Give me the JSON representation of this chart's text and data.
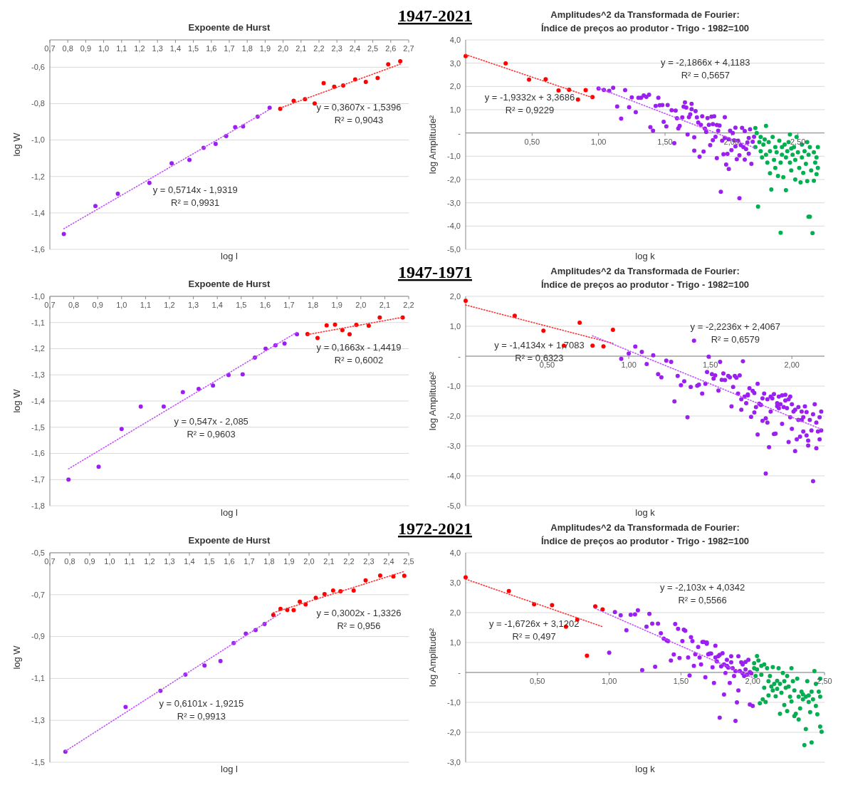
{
  "chart_data": [
    {
      "type": "scatter",
      "title": "Expoente de Hurst",
      "xlabel": "log l",
      "ylabel": "log W",
      "marker": "circle",
      "grid": "y",
      "xlim": [
        0.7,
        2.7
      ],
      "ylim": [
        -1.6,
        -0.45
      ],
      "xticks": [
        {
          "value": 0.7,
          "label": "0,7"
        },
        {
          "value": 0.8,
          "label": "0,8"
        },
        {
          "value": 0.9,
          "label": "0,9"
        },
        {
          "value": 1.0,
          "label": "1,0"
        },
        {
          "value": 1.1,
          "label": "1,1"
        },
        {
          "value": 1.2,
          "label": "1,2"
        },
        {
          "value": 1.3,
          "label": "1,3"
        },
        {
          "value": 1.4,
          "label": "1,4"
        },
        {
          "value": 1.5,
          "label": "1,5"
        },
        {
          "value": 1.6,
          "label": "1,6"
        },
        {
          "value": 1.7,
          "label": "1,7"
        },
        {
          "value": 1.8,
          "label": "1,8"
        },
        {
          "value": 1.9,
          "label": "1,9"
        },
        {
          "value": 2.0,
          "label": "2,0"
        },
        {
          "value": 2.1,
          "label": "2,1"
        },
        {
          "value": 2.2,
          "label": "2,2"
        },
        {
          "value": 2.3,
          "label": "2,3"
        },
        {
          "value": 2.4,
          "label": "2,4"
        },
        {
          "value": 2.5,
          "label": "2,5"
        },
        {
          "value": 2.6,
          "label": "2,6"
        },
        {
          "value": 2.7,
          "label": "2,7"
        }
      ],
      "yticks": [
        {
          "value": -1.6,
          "label": "-1,6"
        },
        {
          "value": -1.4,
          "label": "-1,4"
        },
        {
          "value": -1.2,
          "label": "-1,2"
        },
        {
          "value": -1.0,
          "label": "-1,0"
        },
        {
          "value": -0.8,
          "label": "-0,8"
        },
        {
          "value": -0.6,
          "label": "-0,6"
        }
      ],
      "series": [
        {
          "color": "#9b1ff0",
          "x": [
            0.778,
            0.954,
            1.079,
            1.255,
            1.379,
            1.478,
            1.557,
            1.624,
            1.683,
            1.733,
            1.777,
            1.858,
            1.925
          ],
          "values": [
            -1.516,
            -1.362,
            -1.295,
            -1.235,
            -1.128,
            -1.109,
            -1.043,
            -1.021,
            -0.978,
            -0.929,
            -0.925,
            -0.871,
            -0.823
          ]
        },
        {
          "color": "#ff0000",
          "x": [
            1.984,
            2.059,
            2.122,
            2.176,
            2.226,
            2.285,
            2.335,
            2.402,
            2.461,
            2.527,
            2.586,
            2.653
          ],
          "values": [
            -0.828,
            -0.784,
            -0.776,
            -0.799,
            -0.688,
            -0.707,
            -0.7,
            -0.667,
            -0.681,
            -0.659,
            -0.584,
            -0.567
          ]
        },
        {
          "type": "line",
          "marker": "none",
          "line_style": "dotted",
          "color": "#c050ff",
          "x": [
            0.778,
            1.925
          ],
          "values": [
            -1.487,
            -0.832
          ]
        },
        {
          "type": "line",
          "marker": "none",
          "line_style": "dotted",
          "color": "#ff3030",
          "x": [
            1.984,
            2.653
          ],
          "values": [
            -0.824,
            -0.583
          ]
        }
      ],
      "annotations": [
        "1947-2021",
        "y = 0,5714x - 1,9319",
        "R² = 0,9931",
        "y = 0,3607x - 1,5396",
        "R² = 0,9043"
      ]
    },
    {
      "type": "scatter",
      "title": "Amplitudes^2 da Transformada de Fourier:",
      "subtitle": "Índice de preços ao produtor - Trigo - 1982=100",
      "xlabel": "log k",
      "ylabel": "log Amplitude²",
      "marker": "circle",
      "grid": "y",
      "xlim": [
        0,
        2.7
      ],
      "ylim": [
        -5,
        4
      ],
      "xticks": [
        {
          "value": 0.5,
          "label": "0,50"
        },
        {
          "value": 1.0,
          "label": "1,00"
        },
        {
          "value": 1.5,
          "label": "1,50"
        },
        {
          "value": 2.0,
          "label": "2,00"
        },
        {
          "value": 2.5,
          "label": "2,50"
        }
      ],
      "yticks": [
        {
          "value": -5,
          "label": "-5,0"
        },
        {
          "value": -4,
          "label": "-4,0"
        },
        {
          "value": -3,
          "label": "-3,0"
        },
        {
          "value": -2,
          "label": "-2,0"
        },
        {
          "value": -1,
          "label": "-1,0"
        },
        {
          "value": 0,
          "label": "-"
        },
        {
          "value": 1,
          "label": "1,0"
        },
        {
          "value": 2,
          "label": "2,0"
        },
        {
          "value": 3,
          "label": "3,0"
        },
        {
          "value": 4,
          "label": "4,0"
        }
      ],
      "series": [
        {
          "color": "#ff0000",
          "x": [
            0,
            0.301,
            0.477,
            0.602,
            0.699,
            0.778,
            0.845,
            0.903,
            0.954
          ],
          "values": [
            3.3,
            2.99,
            2.29,
            2.31,
            1.83,
            1.86,
            1.44,
            1.84,
            1.54
          ]
        },
        {
          "color": "#9b1ff0",
          "x": [
            1.0,
            1.04,
            1.08,
            1.11,
            1.14,
            1.17,
            1.2,
            1.23,
            1.25,
            1.28,
            1.3,
            1.32,
            1.34,
            1.36,
            1.38,
            1.39,
            1.41,
            1.43,
            1.45,
            1.46,
            1.48,
            1.49,
            1.51,
            1.52,
            1.55,
            1.57,
            1.58,
            1.59,
            1.6,
            1.61,
            1.63,
            1.64,
            1.65,
            1.66,
            1.67,
            1.68,
            1.69,
            1.7,
            1.7,
            1.72,
            1.72,
            1.73,
            1.74,
            1.75,
            1.76,
            1.77,
            1.78,
            1.79,
            1.8,
            1.81,
            1.82,
            1.83,
            1.84,
            1.85,
            1.86,
            1.86,
            1.87,
            1.88,
            1.89,
            1.89,
            1.9,
            1.91,
            1.92,
            1.93,
            1.94,
            1.95,
            1.95,
            1.96,
            1.97,
            1.98,
            1.98,
            1.99,
            2.0,
            2.01,
            2.02,
            2.03,
            2.03,
            2.04,
            2.05,
            2.06,
            2.06,
            2.07,
            2.08,
            2.09,
            2.1,
            2.1,
            2.11,
            2.12,
            2.13,
            2.13,
            2.14,
            2.15,
            2.16,
            2.17
          ],
          "values": [
            1.91,
            1.85,
            1.81,
            1.94,
            1.14,
            0.62,
            1.84,
            1.11,
            1.53,
            0.89,
            1.51,
            1.51,
            1.61,
            1.55,
            1.64,
            0.25,
            0.1,
            1.16,
            1.51,
            1.19,
            1.2,
            0.48,
            0.28,
            1.2,
            0.98,
            -0.44,
            0.96,
            0.63,
            0.2,
            0.3,
            0.67,
            1.13,
            1.31,
            1.09,
            -0.06,
            0.68,
            0.8,
            1.25,
            1.02,
            -0.19,
            -0.76,
            0.94,
            0.67,
            0.45,
            -1.02,
            0.35,
            0.72,
            -0.8,
            0.19,
            0.04,
            0.64,
            0.35,
            -0.52,
            0.7,
            0.38,
            -0.31,
            0.72,
            -0.16,
            0.34,
            -1.08,
            0.1,
            0.32,
            -2.53,
            -0.33,
            -0.91,
            0.68,
            -0.21,
            -1.36,
            -0.9,
            -1.55,
            -0.27,
            0.1,
            -0.74,
            0,
            -0.32,
            -0.58,
            0.23,
            -1.13,
            -0.33,
            -0.96,
            -2.8,
            -0.52,
            0.22,
            -0.61,
            -1.14,
            0.08,
            -0.69,
            -0.41,
            -0.89,
            -0.22,
            0.16,
            -1.33,
            -0.38,
            -0.16
          ]
        },
        {
          "color": "#00b050",
          "x": [
            2.18,
            2.18,
            2.19,
            2.2,
            2.21,
            2.22,
            2.22,
            2.23,
            2.24,
            2.25,
            2.26,
            2.26,
            2.27,
            2.28,
            2.29,
            2.29,
            2.3,
            2.31,
            2.32,
            2.33,
            2.33,
            2.34,
            2.35,
            2.36,
            2.37,
            2.37,
            2.38,
            2.38,
            2.39,
            2.4,
            2.41,
            2.41,
            2.42,
            2.43,
            2.44,
            2.44,
            2.45,
            2.45,
            2.46,
            2.47,
            2.48,
            2.48,
            2.49,
            2.5,
            2.51,
            2.52,
            2.53,
            2.53,
            2.54,
            2.55,
            2.56,
            2.57,
            2.57,
            2.58,
            2.58,
            2.59,
            2.59,
            2.6,
            2.61,
            2.62,
            2.62,
            2.63,
            2.64,
            2.64,
            2.65,
            2.65
          ],
          "values": [
            0.21,
            -0.61,
            0,
            -3.16,
            -0.39,
            -0.78,
            -0.17,
            -1.05,
            -0.5,
            -0.28,
            -0.94,
            0.3,
            -1.27,
            -0.39,
            -1.73,
            -0.78,
            -2.43,
            -0.17,
            -1.16,
            -0.61,
            -1.5,
            -0.83,
            -1.85,
            -0.33,
            -1.27,
            -4.29,
            -0.61,
            -0.94,
            -1.9,
            -0.5,
            -1.05,
            -2.46,
            -0.78,
            -0.39,
            -1.27,
            -0.06,
            -0.67,
            -1.61,
            -0.94,
            -0.61,
            -2.0,
            -1.16,
            -0.17,
            -0.83,
            -1.5,
            -2.12,
            -0.5,
            -1.05,
            -1.72,
            -0.78,
            -1.33,
            -2.07,
            -0.39,
            -3.6,
            -0.94,
            -0.61,
            -3.6,
            -1.61,
            -4.3,
            -2.05,
            -0.83,
            -1.27,
            -1.77,
            -1.05,
            -1.5,
            -0.61
          ]
        },
        {
          "type": "line",
          "marker": "none",
          "line_style": "dotted",
          "color": "#ff3030",
          "x": [
            0,
            0.955
          ],
          "values": [
            3.37,
            1.52
          ]
        },
        {
          "type": "line",
          "marker": "none",
          "line_style": "dotted",
          "color": "#c050ff",
          "x": [
            1.0,
            2.18
          ],
          "values": [
            1.93,
            -0.65
          ]
        }
      ],
      "annotations": [
        "y = -1,9332x + 3,3686",
        "R² = 0,9229",
        "y = -2,1866x + 4,1183",
        "R² = 0,5657"
      ]
    },
    {
      "type": "scatter",
      "title": "Expoente de Hurst",
      "xlabel": "log l",
      "ylabel": "log W",
      "marker": "circle",
      "grid": "y",
      "xlim": [
        0.7,
        2.2
      ],
      "ylim": [
        -1.8,
        -1.0
      ],
      "xticks": [
        {
          "value": 0.7,
          "label": "0,7"
        },
        {
          "value": 0.8,
          "label": "0,8"
        },
        {
          "value": 0.9,
          "label": "0,9"
        },
        {
          "value": 1.0,
          "label": "1,0"
        },
        {
          "value": 1.1,
          "label": "1,1"
        },
        {
          "value": 1.2,
          "label": "1,2"
        },
        {
          "value": 1.3,
          "label": "1,3"
        },
        {
          "value": 1.4,
          "label": "1,4"
        },
        {
          "value": 1.5,
          "label": "1,5"
        },
        {
          "value": 1.6,
          "label": "1,6"
        },
        {
          "value": 1.7,
          "label": "1,7"
        },
        {
          "value": 1.8,
          "label": "1,8"
        },
        {
          "value": 1.9,
          "label": "1,9"
        },
        {
          "value": 2.0,
          "label": "2,0"
        },
        {
          "value": 2.1,
          "label": "2,1"
        },
        {
          "value": 2.2,
          "label": "2,2"
        }
      ],
      "yticks": [
        {
          "value": -1.8,
          "label": "-1,8"
        },
        {
          "value": -1.7,
          "label": "-1,7"
        },
        {
          "value": -1.6,
          "label": "-1,6"
        },
        {
          "value": -1.5,
          "label": "-1,5"
        },
        {
          "value": -1.4,
          "label": "-1,4"
        },
        {
          "value": -1.3,
          "label": "-1,3"
        },
        {
          "value": -1.2,
          "label": "-1,2"
        },
        {
          "value": -1.1,
          "label": "-1,1"
        },
        {
          "value": -1.0,
          "label": "-1,0"
        }
      ],
      "series": [
        {
          "color": "#9b1ff0",
          "x": [
            0.778,
            0.904,
            1.0,
            1.08,
            1.176,
            1.256,
            1.322,
            1.382,
            1.447,
            1.506,
            1.557,
            1.602,
            1.643,
            1.681,
            1.733
          ],
          "values": [
            -1.7,
            -1.651,
            -1.507,
            -1.421,
            -1.421,
            -1.366,
            -1.354,
            -1.341,
            -1.301,
            -1.298,
            -1.234,
            -1.2,
            -1.187,
            -1.18,
            -1.145
          ]
        },
        {
          "color": "#ff0000",
          "x": [
            1.777,
            1.819,
            1.857,
            1.892,
            1.923,
            1.953,
            1.981,
            2.033,
            2.079,
            2.175
          ],
          "values": [
            -1.144,
            -1.159,
            -1.111,
            -1.108,
            -1.129,
            -1.145,
            -1.109,
            -1.112,
            -1.081,
            -1.081
          ]
        },
        {
          "type": "line",
          "marker": "none",
          "line_style": "dotted",
          "color": "#c050ff",
          "x": [
            0.778,
            1.733
          ],
          "values": [
            -1.659,
            -1.137
          ]
        },
        {
          "type": "line",
          "marker": "none",
          "line_style": "dotted",
          "color": "#ff3030",
          "x": [
            1.777,
            2.175
          ],
          "values": [
            -1.146,
            -1.08
          ]
        }
      ],
      "annotations": [
        "1947-1971",
        "y = 0,547x - 2,085",
        "R² = 0,9603",
        "y = 0,1663x - 1,4419",
        "R² = 0,6002"
      ]
    },
    {
      "type": "scatter",
      "title": "Amplitudes^2 da Transformada de Fourier:",
      "subtitle": "Índice de preços ao produtor - Trigo - 1982=100",
      "xlabel": "log k",
      "ylabel": "log Amplitude²",
      "marker": "circle",
      "grid": "y",
      "xlim": [
        0,
        2.2
      ],
      "ylim": [
        -5,
        2
      ],
      "xticks": [
        {
          "value": 0.5,
          "label": "0,50"
        },
        {
          "value": 1.0,
          "label": "1,00"
        },
        {
          "value": 1.5,
          "label": "1,50"
        },
        {
          "value": 2.0,
          "label": "2,00"
        }
      ],
      "yticks": [
        {
          "value": -5,
          "label": "-5,0"
        },
        {
          "value": -4,
          "label": "-4,0"
        },
        {
          "value": -3,
          "label": "-3,0"
        },
        {
          "value": -2,
          "label": "-2,0"
        },
        {
          "value": -1,
          "label": "-1,0"
        },
        {
          "value": 0,
          "label": "-"
        },
        {
          "value": 1,
          "label": "1,0"
        },
        {
          "value": 2,
          "label": "2,0"
        }
      ],
      "series": [
        {
          "color": "#ff0000",
          "x": [
            0,
            0.301,
            0.477,
            0.602,
            0.699,
            0.778,
            0.845,
            0.903
          ],
          "values": [
            1.85,
            1.35,
            0.85,
            0.35,
            1.12,
            0.35,
            0.33,
            0.88
          ]
        },
        {
          "color": "#9b1ff0",
          "x": [
            0.954,
            1.0,
            1.04,
            1.08,
            1.11,
            1.15,
            1.18,
            1.2,
            1.23,
            1.26,
            1.28,
            1.3,
            1.32,
            1.34,
            1.36,
            1.38,
            1.4,
            1.42,
            1.43,
            1.45,
            1.47,
            1.48,
            1.49,
            1.51,
            1.52,
            1.53,
            1.55,
            1.56,
            1.57,
            1.58,
            1.59,
            1.61,
            1.62,
            1.63,
            1.64,
            1.65,
            1.66,
            1.67,
            1.68,
            1.69,
            1.69,
            1.7,
            1.71,
            1.72,
            1.73,
            1.73,
            1.74,
            1.75,
            1.76,
            1.77,
            1.77,
            1.78,
            1.79,
            1.79,
            1.8,
            1.81,
            1.82,
            1.82,
            1.83,
            1.84,
            1.84,
            1.85,
            1.85,
            1.86,
            1.87,
            1.87,
            1.88,
            1.89,
            1.89,
            1.9,
            1.91,
            1.91,
            1.92,
            1.92,
            1.93,
            1.94,
            1.94,
            1.95,
            1.96,
            1.96,
            1.97,
            1.98,
            1.98,
            1.99,
            1.99,
            2.0,
            2.0,
            2.01,
            2.02,
            2.02,
            2.03,
            2.04,
            2.04,
            2.05,
            2.06,
            2.06,
            2.07,
            2.07,
            2.08,
            2.09,
            2.09,
            2.1,
            2.1,
            2.11,
            2.12,
            2.13,
            2.13,
            2.14,
            2.15,
            2.15,
            2.16,
            2.17,
            2.17,
            2.18,
            2.18
          ],
          "values": [
            -0.09,
            0.09,
            0.32,
            0.14,
            -0.26,
            0.03,
            -0.6,
            -0.71,
            -0.15,
            -0.19,
            -1.51,
            -0.66,
            -0.97,
            -0.84,
            -2.04,
            -1.03,
            0.52,
            -0.99,
            -0.95,
            -1.25,
            -0.92,
            -0.53,
            -0.02,
            -0.6,
            -0.75,
            -0.64,
            -1.15,
            -0.19,
            -0.79,
            -0.58,
            -0.8,
            -0.66,
            -0.71,
            -1.68,
            -1.03,
            -0.66,
            -0.72,
            -1.25,
            -0.64,
            -1.44,
            -1.79,
            -0.17,
            -1.35,
            -1.57,
            -1.31,
            -1.28,
            -1.07,
            -2.03,
            -1.16,
            -1.23,
            -1.88,
            -1.7,
            -0.92,
            -2.62,
            -1.59,
            -1.63,
            -2.16,
            -1.41,
            -1.25,
            -2.08,
            -3.92,
            -1.44,
            -2.22,
            -3.04,
            -1.35,
            -1.85,
            -1.41,
            -2.6,
            -1.27,
            -2.59,
            -1.57,
            -1.67,
            -1.35,
            -1.74,
            -1.61,
            -1.31,
            -2.26,
            -1.7,
            -1.29,
            -1.48,
            -1.74,
            -2.87,
            -1.44,
            -1.35,
            -2.04,
            -1.61,
            -2.43,
            -1.85,
            -3.17,
            -1.79,
            -2.78,
            -2.13,
            -1.7,
            -2.69,
            -2.13,
            -1.85,
            -2.04,
            -2.52,
            -1.68,
            -2.65,
            -1.87,
            -2.99,
            -2.82,
            -2.13,
            -2.48,
            -1.94,
            -4.18,
            -1.61,
            -3.08,
            -2.22,
            -2.52,
            -2.04,
            -2.78,
            -1.85,
            -2.48
          ]
        },
        {
          "type": "line",
          "marker": "none",
          "line_style": "dotted",
          "color": "#ff3030",
          "x": [
            0,
            0.903
          ],
          "values": [
            1.71,
            0.43
          ]
        },
        {
          "type": "line",
          "marker": "none",
          "line_style": "dotted",
          "color": "#c050ff",
          "x": [
            0.778,
            2.18
          ],
          "values": [
            0.68,
            -2.44
          ]
        }
      ],
      "annotations": [
        "y = -1,4134x + 1,7083",
        "R² = 0,6323",
        "y = -2,2236x + 2,4067",
        "R² = 0,6579"
      ]
    },
    {
      "type": "scatter",
      "title": "Expoente de Hurst",
      "xlabel": "log l",
      "ylabel": "log W",
      "marker": "circle",
      "grid": "y",
      "xlim": [
        0.7,
        2.5
      ],
      "ylim": [
        -1.5,
        -0.5
      ],
      "xticks": [
        {
          "value": 0.7,
          "label": "0,7"
        },
        {
          "value": 0.8,
          "label": "0,8"
        },
        {
          "value": 0.9,
          "label": "0,9"
        },
        {
          "value": 1.0,
          "label": "1,0"
        },
        {
          "value": 1.1,
          "label": "1,1"
        },
        {
          "value": 1.2,
          "label": "1,2"
        },
        {
          "value": 1.3,
          "label": "1,3"
        },
        {
          "value": 1.4,
          "label": "1,4"
        },
        {
          "value": 1.5,
          "label": "1,5"
        },
        {
          "value": 1.6,
          "label": "1,6"
        },
        {
          "value": 1.7,
          "label": "1,7"
        },
        {
          "value": 1.8,
          "label": "1,8"
        },
        {
          "value": 1.9,
          "label": "1,9"
        },
        {
          "value": 2.0,
          "label": "2,0"
        },
        {
          "value": 2.1,
          "label": "2,1"
        },
        {
          "value": 2.2,
          "label": "2,2"
        },
        {
          "value": 2.3,
          "label": "2,3"
        },
        {
          "value": 2.4,
          "label": "2,4"
        },
        {
          "value": 2.5,
          "label": "2,5"
        }
      ],
      "yticks": [
        {
          "value": -1.5,
          "label": "-1,5"
        },
        {
          "value": -1.3,
          "label": "-1,3"
        },
        {
          "value": -1.1,
          "label": "-1,1"
        },
        {
          "value": -0.9,
          "label": "-0,9"
        },
        {
          "value": -0.7,
          "label": "-0,7"
        },
        {
          "value": -0.5,
          "label": "-0,5"
        }
      ],
      "series": [
        {
          "color": "#9b1ff0",
          "x": [
            0.778,
            1.08,
            1.255,
            1.38,
            1.476,
            1.556,
            1.622,
            1.683,
            1.732,
            1.777
          ],
          "values": [
            -1.45,
            -1.236,
            -1.159,
            -1.082,
            -1.038,
            -1.017,
            -0.931,
            -0.886,
            -0.869,
            -0.84
          ]
        },
        {
          "color": "#ff0000",
          "x": [
            1.821,
            1.857,
            1.891,
            1.923,
            1.954,
            1.983,
            2.034,
            2.078,
            2.121,
            2.158,
            2.224,
            2.284,
            2.357,
            2.423,
            2.478
          ],
          "values": [
            -0.797,
            -0.768,
            -0.773,
            -0.774,
            -0.734,
            -0.747,
            -0.715,
            -0.697,
            -0.68,
            -0.684,
            -0.68,
            -0.632,
            -0.609,
            -0.613,
            -0.61
          ]
        },
        {
          "type": "line",
          "marker": "none",
          "line_style": "dotted",
          "color": "#c050ff",
          "x": [
            0.778,
            1.857
          ],
          "values": [
            -1.447,
            -0.789
          ]
        },
        {
          "type": "line",
          "marker": "none",
          "line_style": "dotted",
          "color": "#ff3030",
          "x": [
            1.821,
            2.478
          ],
          "values": [
            -0.786,
            -0.589
          ]
        }
      ],
      "annotations": [
        "1972-2021",
        "y = 0,6101x - 1,9215",
        "R² = 0,9913",
        "y = 0,3002x - 1,3326",
        "R² = 0,956"
      ]
    },
    {
      "type": "scatter",
      "title": "Amplitudes^2 da Transformada de Fourier:",
      "subtitle": "Índice de preços ao produtor - Trigo - 1982=100",
      "xlabel": "log k",
      "ylabel": "log Amplitude²",
      "marker": "circle",
      "grid": "y",
      "xlim": [
        0,
        2.5
      ],
      "ylim": [
        -3,
        4
      ],
      "xticks": [
        {
          "value": 0.5,
          "label": "0,50"
        },
        {
          "value": 1.0,
          "label": "1,00"
        },
        {
          "value": 1.5,
          "label": "1,50"
        },
        {
          "value": 2.0,
          "label": "2,00"
        },
        {
          "value": 2.5,
          "label": "2,50"
        }
      ],
      "yticks": [
        {
          "value": -3,
          "label": "-3,0"
        },
        {
          "value": -2,
          "label": "-2,0"
        },
        {
          "value": -1,
          "label": "-1,0"
        },
        {
          "value": 0,
          "label": "-"
        },
        {
          "value": 1,
          "label": "1,0"
        },
        {
          "value": 2,
          "label": "2,0"
        },
        {
          "value": 3,
          "label": "3,0"
        },
        {
          "value": 4,
          "label": "4,0"
        }
      ],
      "series": [
        {
          "color": "#ff0000",
          "x": [
            0,
            0.301,
            0.477,
            0.602,
            0.699,
            0.778,
            0.845,
            0.903,
            0.954
          ],
          "values": [
            3.18,
            2.72,
            2.28,
            2.25,
            1.53,
            1.77,
            0.56,
            2.21,
            2.11
          ]
        },
        {
          "color": "#9b1ff0",
          "x": [
            1.0,
            1.04,
            1.08,
            1.12,
            1.15,
            1.18,
            1.2,
            1.23,
            1.26,
            1.28,
            1.3,
            1.32,
            1.34,
            1.36,
            1.38,
            1.4,
            1.41,
            1.43,
            1.45,
            1.46,
            1.48,
            1.49,
            1.51,
            1.52,
            1.53,
            1.55,
            1.56,
            1.57,
            1.58,
            1.59,
            1.6,
            1.62,
            1.63,
            1.64,
            1.65,
            1.66,
            1.67,
            1.68,
            1.68,
            1.69,
            1.7,
            1.71,
            1.72,
            1.73,
            1.74,
            1.74,
            1.75,
            1.76,
            1.77,
            1.77,
            1.78,
            1.79,
            1.8,
            1.8,
            1.81,
            1.82,
            1.82,
            1.83,
            1.84,
            1.85,
            1.85,
            1.86,
            1.87,
            1.88,
            1.88,
            1.89,
            1.9,
            1.9,
            1.91,
            1.92,
            1.93,
            1.93,
            1.94,
            1.95,
            1.95,
            1.96,
            1.97,
            1.98,
            1.98,
            1.99,
            2.0
          ],
          "values": [
            0.66,
            2.02,
            1.91,
            1.41,
            1.93,
            1.94,
            2.08,
            0.08,
            1.53,
            1.96,
            1.63,
            0.19,
            1.63,
            1.31,
            1.13,
            1.07,
            1.05,
            0.4,
            0.6,
            1.62,
            1.46,
            0.48,
            1.05,
            1.43,
            1.39,
            0.5,
            -0.1,
            1.18,
            1.05,
            0.22,
            0.61,
            0.85,
            0.5,
            0.27,
            1.02,
            1.02,
            -0.16,
            0.96,
            1.0,
            0.61,
            0.63,
            0.63,
            0.17,
            -0.35,
            0.89,
            0.5,
            0.37,
            0.54,
            -1.51,
            0.59,
            0.2,
            0.64,
            0.27,
            -0.74,
            -0.02,
            0.42,
            0.22,
            0.16,
            -0.35,
            0.54,
            0.34,
            0.14,
            -0.12,
            -1.62,
            0.05,
            -1.0,
            -0.6,
            0.54,
            0.05,
            0.34,
            -0.03,
            0.27,
            -0.12,
            0.35,
            0.1,
            -0.08,
            0.42,
            0.01,
            -1.07,
            -0.03,
            -1.12
          ]
        },
        {
          "color": "#00b050",
          "x": [
            2.01,
            2.01,
            2.02,
            2.03,
            2.03,
            2.04,
            2.05,
            2.06,
            2.06,
            2.07,
            2.08,
            2.08,
            2.09,
            2.1,
            2.11,
            2.11,
            2.12,
            2.13,
            2.14,
            2.14,
            2.15,
            2.16,
            2.17,
            2.17,
            2.18,
            2.19,
            2.19,
            2.2,
            2.21,
            2.22,
            2.22,
            2.23,
            2.24,
            2.24,
            2.25,
            2.26,
            2.27,
            2.27,
            2.28,
            2.29,
            2.29,
            2.3,
            2.31,
            2.32,
            2.32,
            2.33,
            2.34,
            2.35,
            2.35,
            2.36,
            2.37,
            2.37,
            2.38,
            2.39,
            2.39,
            2.4,
            2.41,
            2.41,
            2.42,
            2.43,
            2.44,
            2.44,
            2.45,
            2.46,
            2.47,
            2.47,
            2.47,
            2.48
          ],
          "values": [
            0.14,
            0.31,
            -0.12,
            0.55,
            0.1,
            0.4,
            -1.03,
            -0.08,
            0.22,
            -0.9,
            0.27,
            -0.51,
            -0.99,
            0.14,
            -0.29,
            -0.77,
            -0.12,
            -0.47,
            -0.6,
            0.18,
            -0.38,
            -0.8,
            -0.28,
            -0.55,
            0.14,
            -1.38,
            -0.38,
            -0.68,
            -0.02,
            -0.29,
            -1.09,
            -0.51,
            -0.12,
            -1.29,
            -0.47,
            -0.81,
            0.14,
            -0.97,
            -0.29,
            -1.46,
            -0.6,
            -1.38,
            -0.21,
            -1.57,
            -0.81,
            -1.2,
            -0.64,
            -0.9,
            -0.73,
            -2.43,
            -0.81,
            -1.89,
            -0.29,
            -0.99,
            -0.77,
            -1.33,
            -2.34,
            -0.64,
            -0.9,
            0.05,
            -1.12,
            -0.38,
            -1.4,
            -0.64,
            -1.81,
            -0.21,
            -0.81,
            -1.98
          ]
        },
        {
          "type": "line",
          "marker": "none",
          "line_style": "dotted",
          "color": "#ff3030",
          "x": [
            0,
            0.954
          ],
          "values": [
            3.12,
            1.53
          ]
        },
        {
          "type": "line",
          "marker": "none",
          "line_style": "dotted",
          "color": "#c050ff",
          "x": [
            0.903,
            2.0
          ],
          "values": [
            2.14,
            -0.17
          ]
        }
      ],
      "annotations": [
        "y = -1,6726x + 3,1202",
        "R² = 0,497",
        "y = -2,103x + 4,0342",
        "R² = 0,5566"
      ]
    }
  ]
}
